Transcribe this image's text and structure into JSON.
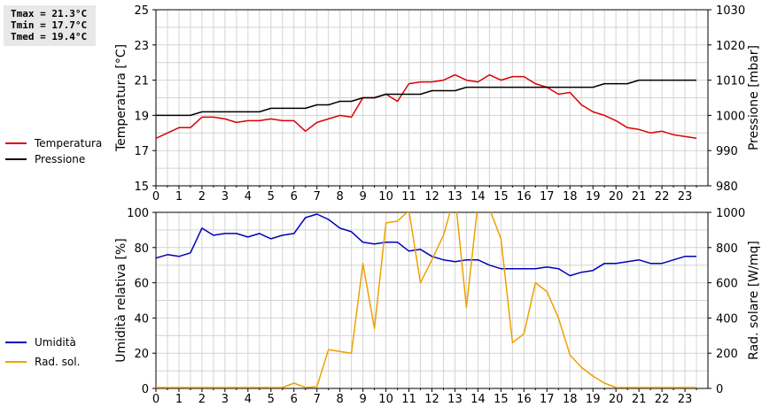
{
  "stats": {
    "tmax": "Tmax = 21.3°C",
    "tmin": "Tmin = 17.7°C",
    "tmed": "Tmed = 19.4°C"
  },
  "chart_data": [
    {
      "type": "line",
      "title": "",
      "xlabel": "",
      "x_ticks": [
        "0",
        "1",
        "2",
        "3",
        "4",
        "5",
        "6",
        "7",
        "8",
        "9",
        "10",
        "11",
        "12",
        "13",
        "14",
        "15",
        "16",
        "17",
        "18",
        "19",
        "20",
        "21",
        "22",
        "23"
      ],
      "xlim": [
        0,
        24
      ],
      "ylabel_left": "Temperatura [°C]",
      "ylim_left": [
        15,
        25
      ],
      "yticks_left": [
        15,
        17,
        19,
        21,
        23,
        25
      ],
      "ylabel_right": "Pressione [mbar]",
      "ylim_right": [
        980,
        1030
      ],
      "yticks_right": [
        980,
        990,
        1000,
        1010,
        1020,
        1030
      ],
      "grid": true,
      "legend_position": "left",
      "series": [
        {
          "name": "Temperatura",
          "color": "#dd0000",
          "axis": "left",
          "x": [
            0,
            0.5,
            1,
            1.5,
            2,
            2.5,
            3,
            3.5,
            4,
            4.5,
            5,
            5.5,
            6,
            6.5,
            7,
            7.5,
            8,
            8.5,
            9,
            9.5,
            10,
            10.5,
            11,
            11.5,
            12,
            12.5,
            13,
            13.5,
            14,
            14.5,
            15,
            15.5,
            16,
            16.5,
            17,
            17.5,
            18,
            18.5,
            19,
            19.5,
            20,
            20.5,
            21,
            21.5,
            22,
            22.5,
            23,
            23.5
          ],
          "y": [
            17.7,
            18.0,
            18.3,
            18.3,
            18.9,
            18.9,
            18.8,
            18.6,
            18.7,
            18.7,
            18.8,
            18.7,
            18.7,
            18.1,
            18.6,
            18.8,
            19.0,
            18.9,
            20.0,
            20.0,
            20.2,
            19.8,
            20.8,
            20.9,
            20.9,
            21.0,
            21.3,
            21.0,
            20.9,
            21.3,
            21.0,
            21.2,
            21.2,
            20.8,
            20.6,
            20.2,
            20.3,
            19.6,
            19.2,
            19.0,
            18.7,
            18.3,
            18.2,
            18.0,
            18.1,
            17.9,
            17.8,
            17.7
          ]
        },
        {
          "name": "Pressione",
          "color": "#000000",
          "axis": "right",
          "x": [
            0,
            1,
            1.5,
            2,
            2.5,
            3,
            3.5,
            4,
            4.5,
            5,
            5.5,
            6,
            6.5,
            7,
            7.5,
            8,
            8.5,
            9,
            9.5,
            10,
            10.5,
            11,
            11.5,
            12,
            12.5,
            13,
            13.5,
            14,
            14.5,
            15,
            15.5,
            16,
            16.5,
            17,
            17.5,
            18,
            18.5,
            19,
            19.5,
            20,
            20.5,
            21,
            21.5,
            22,
            22.5,
            23,
            23.5
          ],
          "y": [
            1000,
            1000,
            1000,
            1001,
            1001,
            1001,
            1001,
            1001,
            1001,
            1002,
            1002,
            1002,
            1002,
            1003,
            1003,
            1004,
            1004,
            1005,
            1005,
            1006,
            1006,
            1006,
            1006,
            1007,
            1007,
            1007,
            1008,
            1008,
            1008,
            1008,
            1008,
            1008,
            1008,
            1008,
            1008,
            1008,
            1008,
            1008,
            1009,
            1009,
            1009,
            1010,
            1010,
            1010,
            1010,
            1010,
            1010
          ]
        }
      ]
    },
    {
      "type": "line",
      "title": "",
      "xlabel": "",
      "x_ticks": [
        "0",
        "1",
        "2",
        "3",
        "4",
        "5",
        "6",
        "7",
        "8",
        "9",
        "10",
        "11",
        "12",
        "13",
        "14",
        "15",
        "16",
        "17",
        "18",
        "19",
        "20",
        "21",
        "22",
        "23"
      ],
      "xlim": [
        0,
        24
      ],
      "ylabel_left": "Umidità relativa [%]",
      "ylim_left": [
        0,
        100
      ],
      "yticks_left": [
        0,
        20,
        40,
        60,
        80,
        100
      ],
      "ylabel_right": "Rad. solare [W/mq]",
      "ylim_right": [
        0,
        1000
      ],
      "yticks_right": [
        0,
        200,
        400,
        600,
        800,
        1000
      ],
      "grid": true,
      "legend_position": "left",
      "series": [
        {
          "name": "Umidità",
          "color": "#0000bb",
          "axis": "left",
          "x": [
            0,
            0.5,
            1,
            1.5,
            2,
            2.5,
            3,
            3.5,
            4,
            4.5,
            5,
            5.5,
            6,
            6.5,
            7,
            7.5,
            8,
            8.5,
            9,
            9.5,
            10,
            10.5,
            11,
            11.5,
            12,
            12.5,
            13,
            13.5,
            14,
            14.5,
            15,
            15.5,
            16,
            16.5,
            17,
            17.5,
            18,
            18.5,
            19,
            19.5,
            20,
            20.5,
            21,
            21.5,
            22,
            22.5,
            23,
            23.5
          ],
          "y": [
            74,
            76,
            75,
            77,
            91,
            87,
            88,
            88,
            86,
            88,
            85,
            87,
            88,
            97,
            99,
            96,
            91,
            89,
            83,
            82,
            83,
            83,
            78,
            79,
            75,
            73,
            72,
            73,
            73,
            70,
            68,
            68,
            68,
            68,
            69,
            68,
            64,
            66,
            67,
            71,
            71,
            72,
            73,
            71,
            71,
            73,
            75,
            75
          ]
        },
        {
          "name": "Rad. sol.",
          "color": "#f0a000",
          "axis": "right",
          "x": [
            0,
            0.5,
            1,
            1.5,
            2,
            2.5,
            3,
            3.5,
            4,
            4.5,
            5,
            5.5,
            6,
            6.5,
            7,
            7.5,
            8,
            8.5,
            9,
            9.5,
            10,
            10.5,
            11,
            11.5,
            12,
            12.5,
            13,
            13.5,
            14,
            14.5,
            15,
            15.5,
            16,
            16.5,
            17,
            17.5,
            18,
            18.5,
            19,
            19.5,
            20,
            20.5,
            21,
            21.5,
            22,
            22.5,
            23,
            23.5
          ],
          "y": [
            5,
            5,
            5,
            5,
            5,
            5,
            5,
            5,
            5,
            5,
            5,
            5,
            30,
            5,
            10,
            220,
            210,
            200,
            710,
            340,
            940,
            950,
            1010,
            600,
            730,
            870,
            1100,
            460,
            1050,
            1020,
            850,
            260,
            310,
            600,
            550,
            400,
            190,
            120,
            70,
            30,
            5,
            5,
            5,
            5,
            5,
            5,
            5,
            5
          ]
        }
      ]
    }
  ]
}
